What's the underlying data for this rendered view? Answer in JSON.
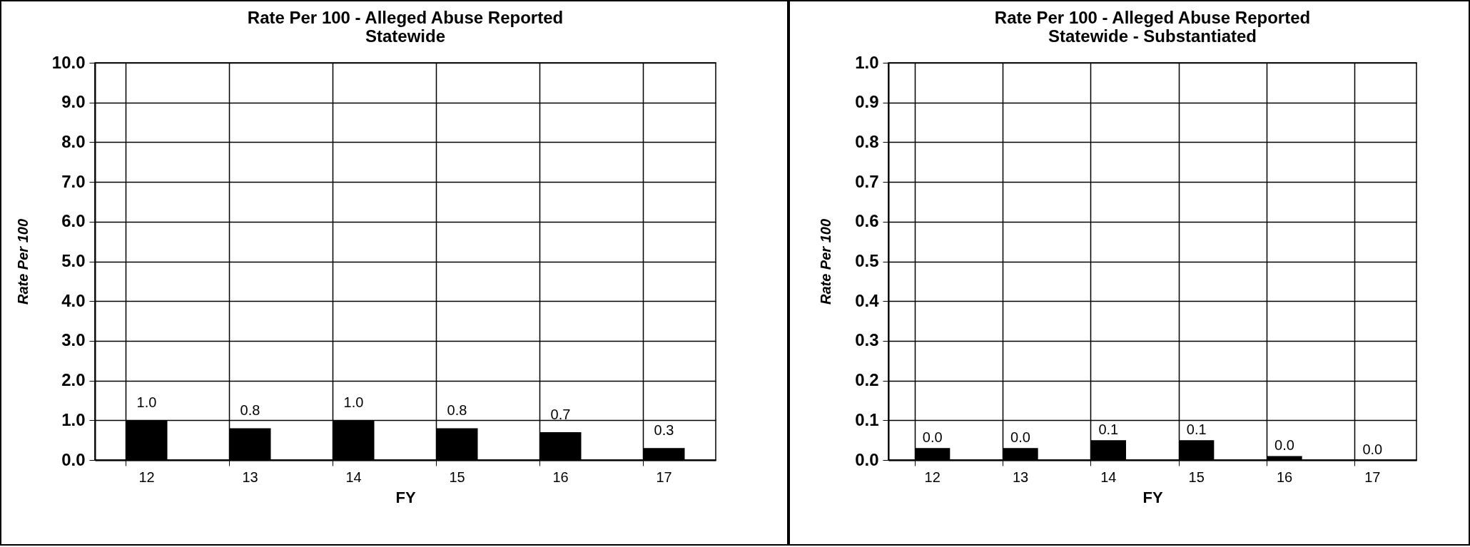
{
  "chart_data": [
    {
      "type": "bar",
      "title": "Rate Per 100 - Alleged  Abuse Reported\nStatewide",
      "xlabel": "FY",
      "ylabel": "Rate Per 100",
      "categories": [
        "12",
        "13",
        "14",
        "15",
        "16",
        "17"
      ],
      "values": [
        1.0,
        0.8,
        1.0,
        0.8,
        0.7,
        0.3
      ],
      "color": "#000000",
      "ylim": [
        0,
        10
      ],
      "yticks": [
        {
          "value": 0,
          "label": "0.0"
        },
        {
          "value": 1,
          "label": "1.0"
        },
        {
          "value": 2,
          "label": "2.0"
        },
        {
          "value": 3,
          "label": "3.0"
        },
        {
          "value": 4,
          "label": "4.0"
        },
        {
          "value": 5,
          "label": "5.0"
        },
        {
          "value": 6,
          "label": "6.0"
        },
        {
          "value": 7,
          "label": "7.0"
        },
        {
          "value": 8,
          "label": "8.0"
        },
        {
          "value": 9,
          "label": "9.0"
        },
        {
          "value": 10,
          "label": "10.0"
        }
      ],
      "grid": true,
      "value_labels": [
        "1.0",
        "0.8",
        "1.0",
        "0.8",
        "0.7",
        "0.3"
      ]
    },
    {
      "type": "bar",
      "title": "Rate Per 100 - Alleged Abuse Reported\nStatewide - Substantiated",
      "xlabel": "FY",
      "ylabel": "Rate Per 100",
      "categories": [
        "12",
        "13",
        "14",
        "15",
        "16",
        "17"
      ],
      "values": [
        0.03,
        0.03,
        0.05,
        0.05,
        0.01,
        0.0
      ],
      "value_labels": [
        "0.0",
        "0.0",
        "0.1",
        "0.1",
        "0.0",
        "0.0"
      ],
      "color": "#000000",
      "ylim": [
        0,
        1
      ],
      "yticks": [
        {
          "value": 0,
          "label": "0.0"
        },
        {
          "value": 0.1,
          "label": "0.1"
        },
        {
          "value": 0.2,
          "label": "0.2"
        },
        {
          "value": 0.3,
          "label": "0.3"
        },
        {
          "value": 0.4,
          "label": "0.4"
        },
        {
          "value": 0.5,
          "label": "0.5"
        },
        {
          "value": 0.6,
          "label": "0.6"
        },
        {
          "value": 0.7,
          "label": "0.7"
        },
        {
          "value": 0.8,
          "label": "0.8"
        },
        {
          "value": 0.9,
          "label": "0.9"
        },
        {
          "value": 1,
          "label": "1.0"
        }
      ],
      "grid": true
    }
  ]
}
